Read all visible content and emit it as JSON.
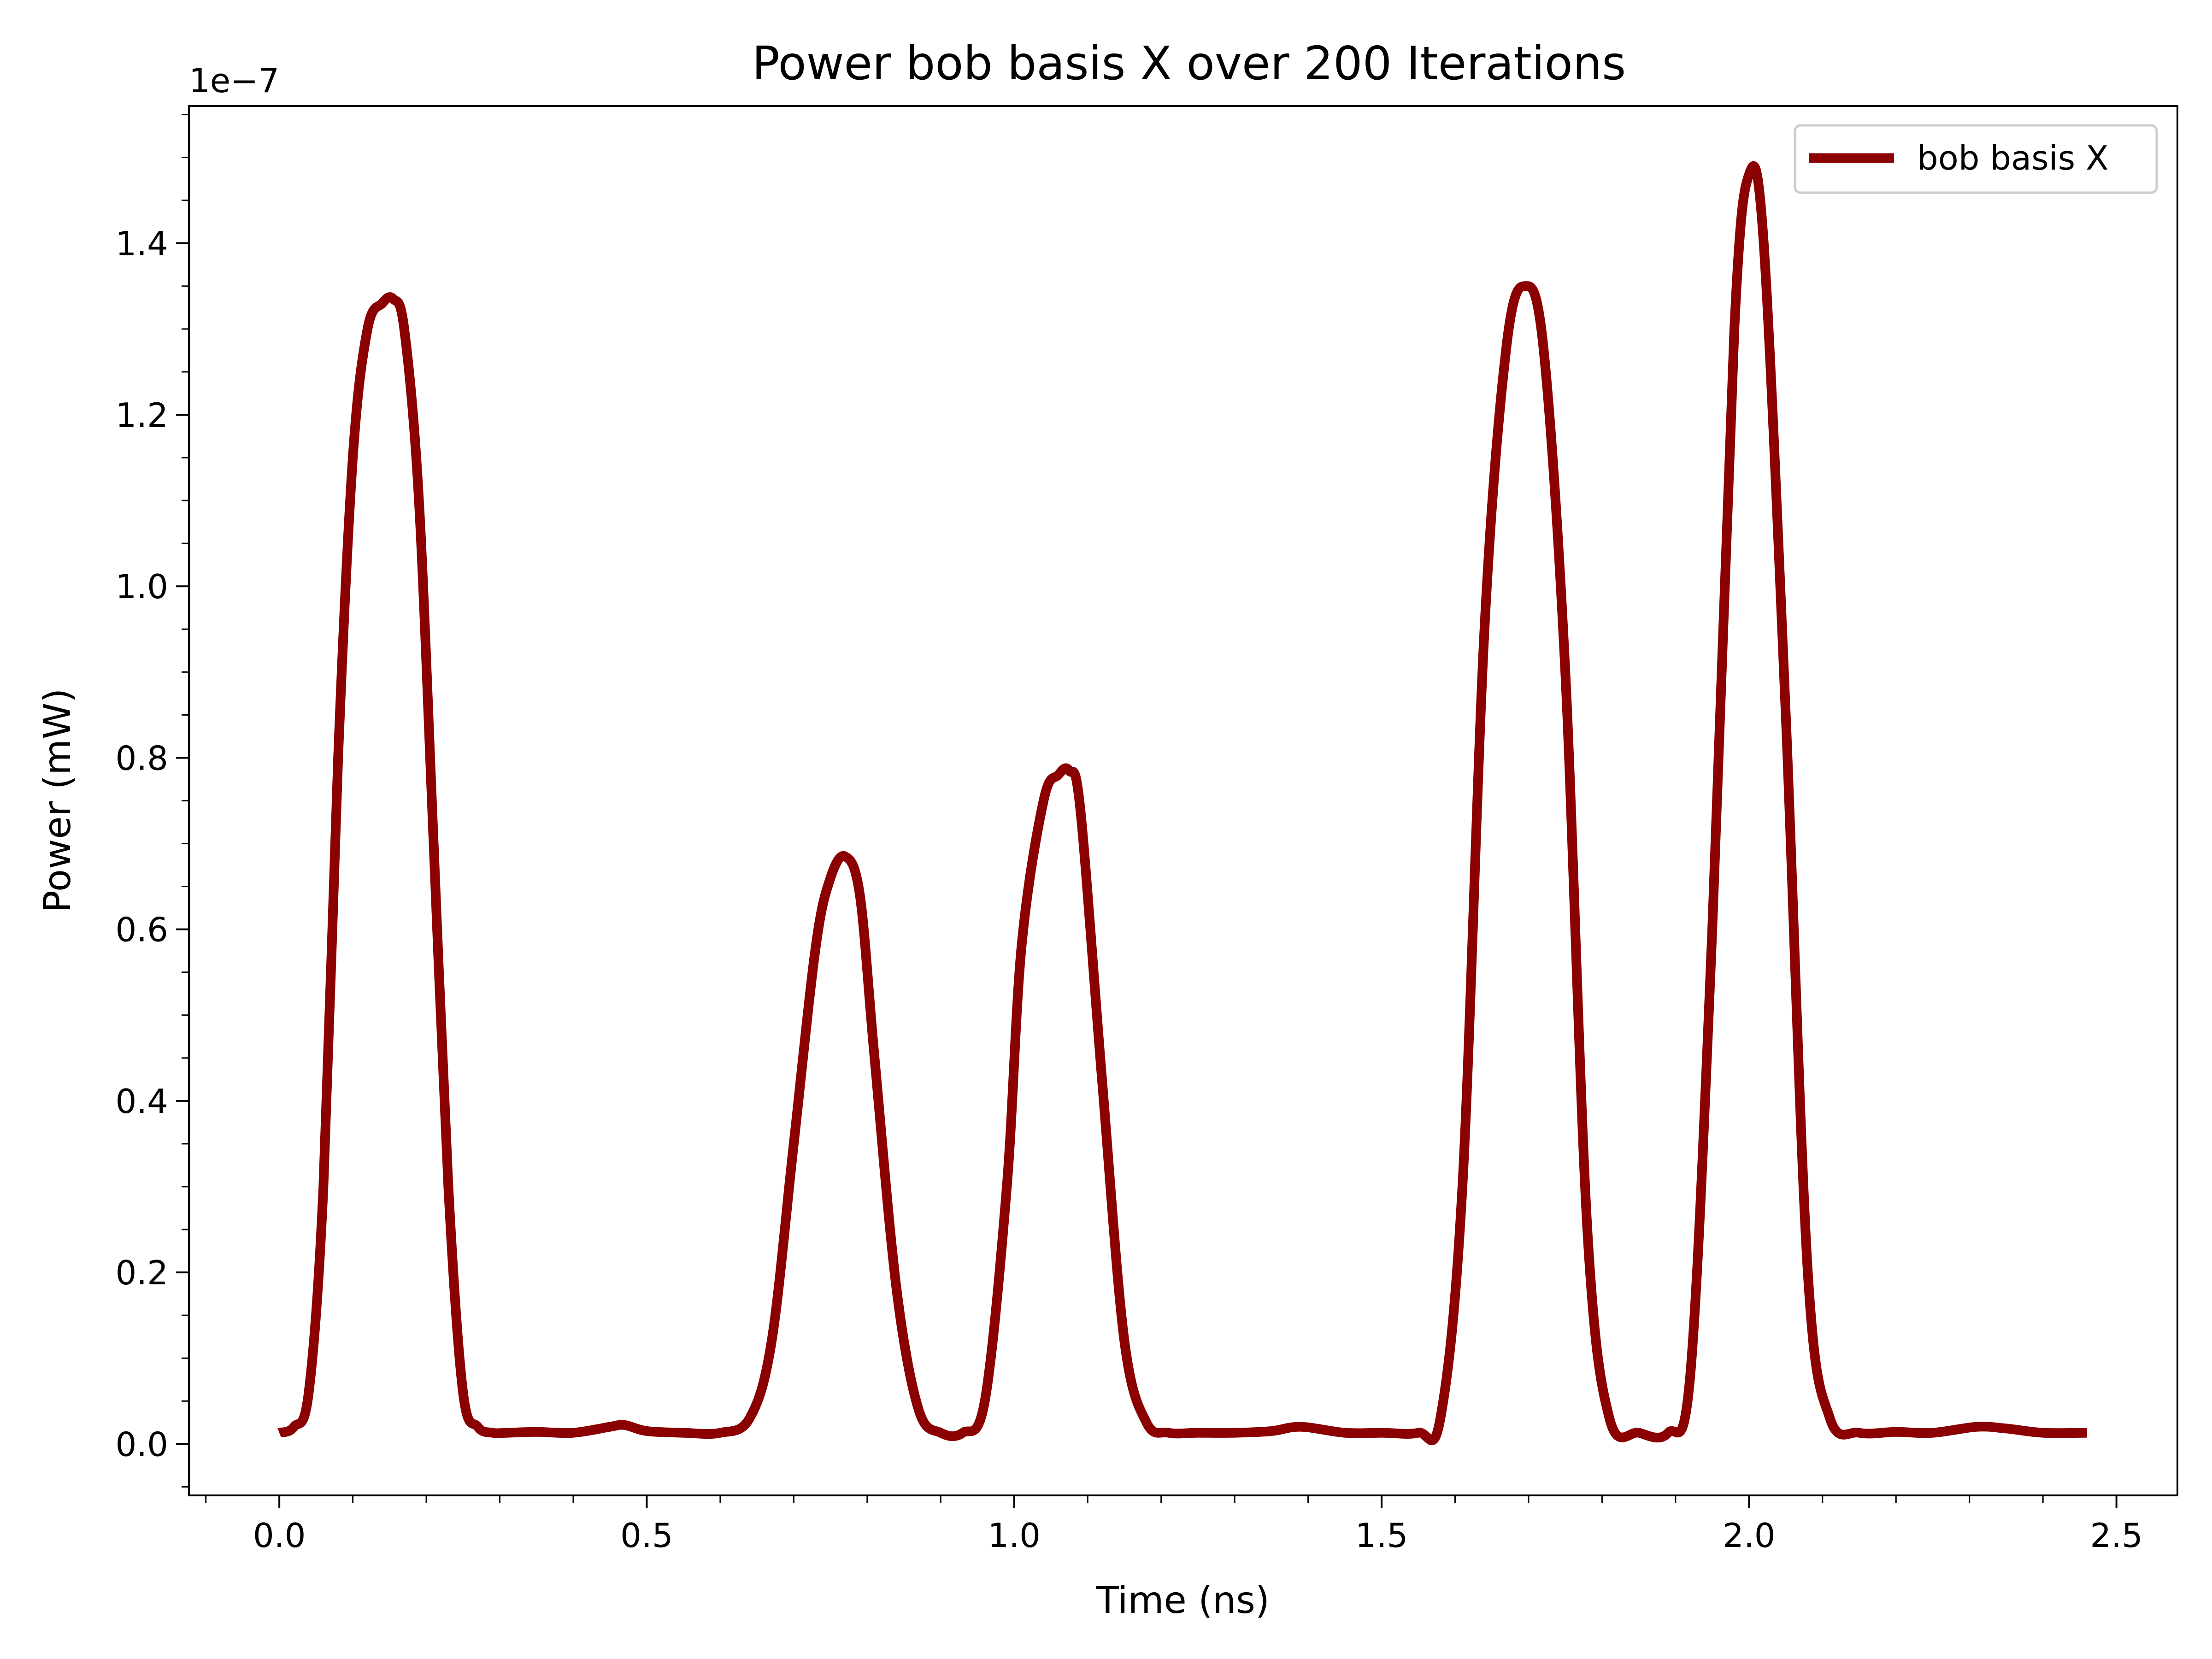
{
  "chart_data": {
    "type": "line",
    "title": "Power bob basis X over 200 Iterations",
    "xlabel": "Time (ns)",
    "ylabel": "Power (mW)",
    "y_offset_label": "1e−7",
    "y_scale_factor": 1e-07,
    "xlim": [
      -0.123,
      2.583
    ],
    "ylim": [
      -0.06,
      1.56
    ],
    "x_ticks": [
      0.0,
      0.5,
      1.0,
      1.5,
      2.0,
      2.5
    ],
    "x_tick_labels": [
      "0.0",
      "0.5",
      "1.0",
      "1.5",
      "2.0",
      "2.5"
    ],
    "x_minor_step": 0.1,
    "y_ticks": [
      0.0,
      0.2,
      0.4,
      0.6,
      0.8,
      1.0,
      1.2,
      1.4
    ],
    "y_tick_labels": [
      "0.0",
      "0.2",
      "0.4",
      "0.6",
      "0.8",
      "1.0",
      "1.2",
      "1.4"
    ],
    "y_minor_step": 0.05,
    "grid": false,
    "legend_position": "top-right",
    "series": [
      {
        "name": "bob basis X",
        "color": "#8b0000",
        "x": [
          0.0,
          0.02,
          0.04,
          0.06,
          0.08,
          0.1,
          0.12,
          0.14,
          0.155,
          0.17,
          0.19,
          0.21,
          0.23,
          0.25,
          0.27,
          0.29,
          0.31,
          0.35,
          0.4,
          0.45,
          0.47,
          0.5,
          0.55,
          0.6,
          0.64,
          0.67,
          0.7,
          0.73,
          0.75,
          0.77,
          0.79,
          0.81,
          0.84,
          0.87,
          0.9,
          0.93,
          0.96,
          0.99,
          1.01,
          1.04,
          1.06,
          1.075,
          1.09,
          1.12,
          1.15,
          1.18,
          1.21,
          1.25,
          1.3,
          1.35,
          1.39,
          1.45,
          1.5,
          1.55,
          1.58,
          1.61,
          1.64,
          1.67,
          1.695,
          1.72,
          1.75,
          1.78,
          1.81,
          1.85,
          1.89,
          1.92,
          1.95,
          1.98,
          2.0,
          2.02,
          2.05,
          2.08,
          2.11,
          2.15,
          2.2,
          2.25,
          2.31,
          2.35,
          2.4,
          2.46
        ],
        "y": [
          0.013,
          0.02,
          0.06,
          0.3,
          0.8,
          1.15,
          1.3,
          1.33,
          1.335,
          1.3,
          1.1,
          0.7,
          0.3,
          0.06,
          0.02,
          0.013,
          0.013,
          0.014,
          0.013,
          0.02,
          0.022,
          0.015,
          0.013,
          0.013,
          0.03,
          0.12,
          0.35,
          0.58,
          0.66,
          0.685,
          0.64,
          0.45,
          0.18,
          0.04,
          0.013,
          0.013,
          0.05,
          0.3,
          0.58,
          0.75,
          0.78,
          0.785,
          0.74,
          0.42,
          0.12,
          0.025,
          0.013,
          0.013,
          0.013,
          0.015,
          0.02,
          0.013,
          0.013,
          0.013,
          0.03,
          0.3,
          0.95,
          1.28,
          1.35,
          1.28,
          0.9,
          0.25,
          0.03,
          0.013,
          0.013,
          0.08,
          0.6,
          1.3,
          1.48,
          1.4,
          0.85,
          0.2,
          0.03,
          0.013,
          0.014,
          0.013,
          0.02,
          0.018,
          0.013,
          0.013
        ]
      }
    ]
  }
}
